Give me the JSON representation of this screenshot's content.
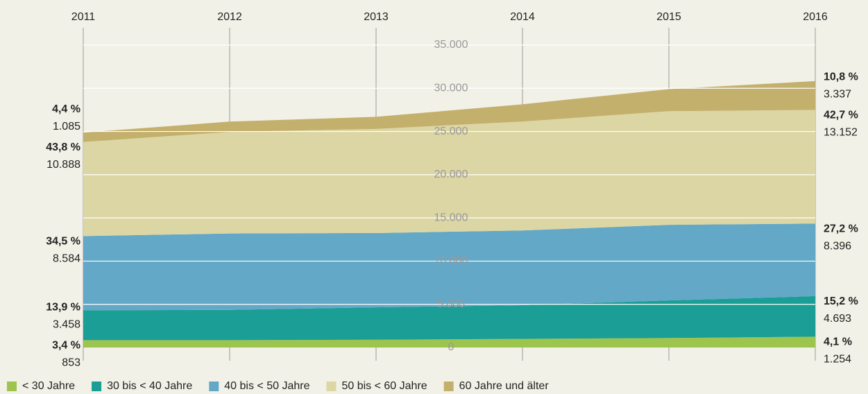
{
  "chart_data": {
    "type": "stacked_area",
    "x": [
      2011,
      2012,
      2013,
      2014,
      2015,
      2016
    ],
    "xlim": [
      2011,
      2016
    ],
    "ylim": [
      0,
      35000
    ],
    "yticks": [
      0,
      {
        "value": 5000,
        "label": "5.000"
      },
      {
        "value": 10000,
        "label": "10.000"
      },
      {
        "value": 15000,
        "label": "15.000"
      },
      {
        "value": 20000,
        "label": "20.000"
      },
      {
        "value": 25000,
        "label": "25.000"
      },
      {
        "value": 30000,
        "label": "30.000"
      },
      {
        "value": 35000,
        "label": "35.000"
      }
    ],
    "grid": true,
    "series": [
      {
        "name": "< 30 Jahre",
        "color": "#9dc44d",
        "values": [
          853,
          850,
          900,
          1000,
          1100,
          1254
        ],
        "value_labels": [
          "853",
          null,
          null,
          null,
          null,
          "1.254"
        ],
        "start_share": "3,4 %",
        "end_share": "4,1 %"
      },
      {
        "name": "30 bis < 40 Jahre",
        "color": "#1a9e96",
        "values": [
          3458,
          3500,
          3750,
          3900,
          4350,
          4693
        ],
        "value_labels": [
          "3.458",
          null,
          null,
          null,
          null,
          "4.693"
        ],
        "start_share": "13,9 %",
        "end_share": "15,2 %"
      },
      {
        "name": "40 bis < 50 Jahre",
        "color": "#63a8c7",
        "values": [
          8584,
          8850,
          8600,
          8650,
          8750,
          8396
        ],
        "value_labels": [
          "8.584",
          null,
          null,
          null,
          null,
          "8.396"
        ],
        "start_share": "34,5 %",
        "end_share": "27,2 %"
      },
      {
        "name": "50 bis < 60 Jahre",
        "color": "#dcd6a5",
        "values": [
          10888,
          11750,
          12050,
          12600,
          13150,
          13152
        ],
        "value_labels": [
          "10.888",
          null,
          null,
          null,
          null,
          "13.152"
        ],
        "start_share": "43,8 %",
        "end_share": "42,7 %"
      },
      {
        "name": "60 Jahre und älter",
        "color": "#c4b06d",
        "values": [
          1085,
          1200,
          1400,
          2000,
          2550,
          3337
        ],
        "value_labels": [
          "1.085",
          null,
          null,
          null,
          null,
          "3.337"
        ],
        "start_share": "4,4 %",
        "end_share": "10,8 %"
      }
    ]
  }
}
